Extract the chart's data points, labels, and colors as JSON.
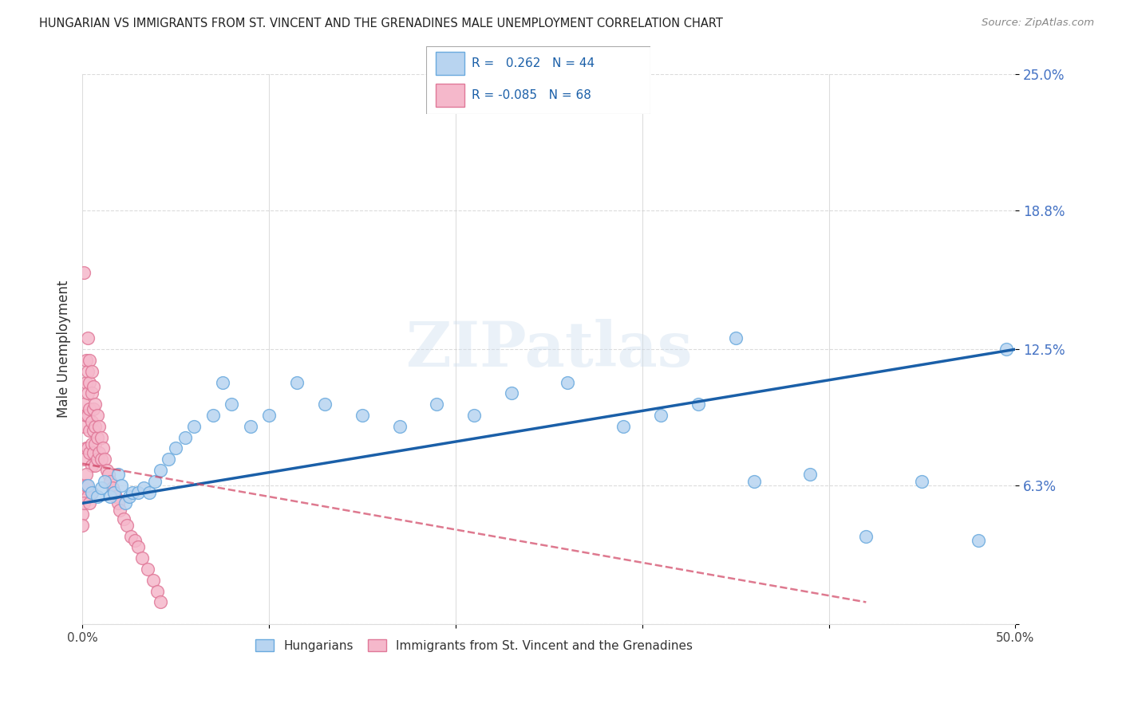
{
  "title": "HUNGARIAN VS IMMIGRANTS FROM ST. VINCENT AND THE GRENADINES MALE UNEMPLOYMENT CORRELATION CHART",
  "source": "Source: ZipAtlas.com",
  "ylabel": "Male Unemployment",
  "xlim": [
    0.0,
    0.5
  ],
  "ylim": [
    0.0,
    0.25
  ],
  "yticks": [
    0.0,
    0.063,
    0.125,
    0.188,
    0.25
  ],
  "ytick_labels": [
    "",
    "6.3%",
    "12.5%",
    "18.8%",
    "25.0%"
  ],
  "xticks": [
    0.0,
    0.1,
    0.2,
    0.3,
    0.4,
    0.5
  ],
  "xtick_labels": [
    "0.0%",
    "",
    "",
    "",
    "",
    "50.0%"
  ],
  "blue_color": "#b8d4f0",
  "blue_edge_color": "#6aaade",
  "pink_color": "#f5b8cb",
  "pink_edge_color": "#e07898",
  "trend_blue_color": "#1a5fa8",
  "trend_pink_color": "#d04060",
  "watermark": "ZIPatlas",
  "legend_R_blue": "0.262",
  "legend_N_blue": "44",
  "legend_R_pink": "-0.085",
  "legend_N_pink": "68",
  "blue_x": [
    0.003,
    0.005,
    0.008,
    0.01,
    0.012,
    0.015,
    0.017,
    0.019,
    0.021,
    0.023,
    0.025,
    0.027,
    0.03,
    0.033,
    0.036,
    0.039,
    0.042,
    0.046,
    0.05,
    0.055,
    0.06,
    0.07,
    0.08,
    0.09,
    0.1,
    0.115,
    0.13,
    0.15,
    0.17,
    0.19,
    0.21,
    0.23,
    0.26,
    0.29,
    0.31,
    0.33,
    0.36,
    0.39,
    0.42,
    0.45,
    0.48,
    0.495,
    0.35,
    0.075
  ],
  "blue_y": [
    0.063,
    0.06,
    0.058,
    0.062,
    0.065,
    0.058,
    0.06,
    0.068,
    0.063,
    0.055,
    0.058,
    0.06,
    0.06,
    0.062,
    0.06,
    0.065,
    0.07,
    0.075,
    0.08,
    0.085,
    0.09,
    0.095,
    0.1,
    0.09,
    0.095,
    0.11,
    0.1,
    0.095,
    0.09,
    0.1,
    0.095,
    0.105,
    0.11,
    0.09,
    0.095,
    0.1,
    0.065,
    0.068,
    0.04,
    0.065,
    0.038,
    0.125,
    0.13,
    0.11
  ],
  "pink_x": [
    0.0,
    0.0,
    0.001,
    0.001,
    0.001,
    0.001,
    0.002,
    0.002,
    0.002,
    0.002,
    0.003,
    0.003,
    0.003,
    0.003,
    0.003,
    0.004,
    0.004,
    0.004,
    0.004,
    0.004,
    0.005,
    0.005,
    0.005,
    0.005,
    0.005,
    0.006,
    0.006,
    0.006,
    0.006,
    0.007,
    0.007,
    0.007,
    0.007,
    0.008,
    0.008,
    0.008,
    0.009,
    0.009,
    0.01,
    0.01,
    0.011,
    0.012,
    0.013,
    0.014,
    0.015,
    0.016,
    0.017,
    0.018,
    0.019,
    0.02,
    0.022,
    0.024,
    0.026,
    0.028,
    0.03,
    0.032,
    0.035,
    0.038,
    0.04,
    0.042,
    0.001,
    0.002,
    0.003,
    0.0,
    0.001,
    0.004,
    0.005,
    0.002
  ],
  "pink_y": [
    0.063,
    0.05,
    0.16,
    0.1,
    0.09,
    0.075,
    0.12,
    0.11,
    0.095,
    0.08,
    0.13,
    0.115,
    0.105,
    0.095,
    0.08,
    0.12,
    0.11,
    0.098,
    0.088,
    0.078,
    0.115,
    0.105,
    0.092,
    0.082,
    0.072,
    0.108,
    0.098,
    0.088,
    0.078,
    0.1,
    0.09,
    0.082,
    0.072,
    0.095,
    0.085,
    0.075,
    0.09,
    0.078,
    0.085,
    0.075,
    0.08,
    0.075,
    0.07,
    0.068,
    0.065,
    0.062,
    0.06,
    0.058,
    0.055,
    0.052,
    0.048,
    0.045,
    0.04,
    0.038,
    0.035,
    0.03,
    0.025,
    0.02,
    0.015,
    0.01,
    0.062,
    0.068,
    0.058,
    0.045,
    0.055,
    0.055,
    0.06,
    0.063
  ]
}
